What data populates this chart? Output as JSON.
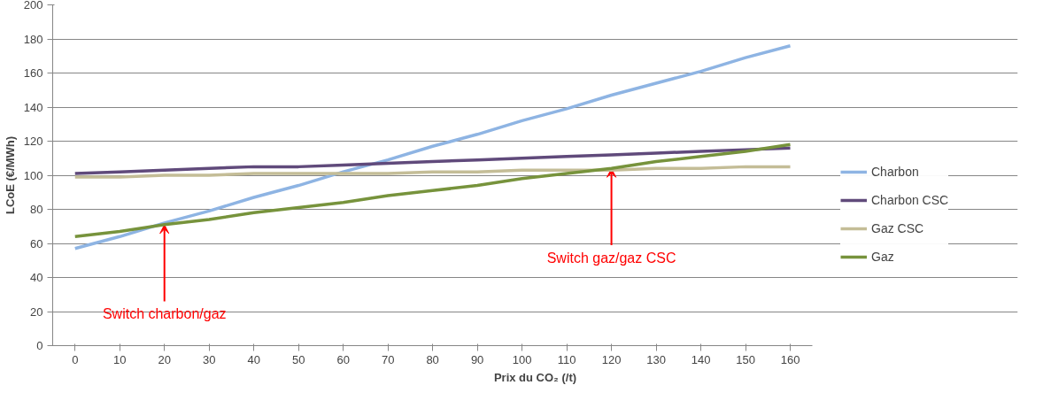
{
  "chart_data": {
    "type": "line",
    "xlabel": "Prix du CO₂ (/t)",
    "ylabel": "LCoE (€/MWh)",
    "categories": [
      "0",
      "10",
      "20",
      "30",
      "40",
      "50",
      "60",
      "70",
      "80",
      "90",
      "100",
      "110",
      "120",
      "130",
      "140",
      "150",
      "160"
    ],
    "series": [
      {
        "name": "Charbon",
        "color": "#8eb4e3",
        "values": [
          57,
          64,
          72,
          79,
          87,
          94,
          102,
          109,
          117,
          124,
          132,
          139,
          147,
          154,
          161,
          169,
          176
        ]
      },
      {
        "name": "Charbon CSC",
        "color": "#604a7b",
        "values": [
          101,
          102,
          103,
          104,
          105,
          105,
          106,
          107,
          108,
          109,
          110,
          111,
          112,
          113,
          114,
          115,
          116
        ]
      },
      {
        "name": "Gaz CSC",
        "color": "#c4bd97",
        "values": [
          99,
          99,
          100,
          100,
          101,
          101,
          101,
          101,
          102,
          102,
          103,
          103,
          103,
          104,
          104,
          105,
          105
        ]
      },
      {
        "name": "Gaz",
        "color": "#77933c",
        "values": [
          64,
          67,
          71,
          74,
          78,
          81,
          84,
          88,
          91,
          94,
          98,
          101,
          104,
          108,
          111,
          114,
          118
        ]
      }
    ],
    "ylim": [
      0,
      200
    ],
    "yticks": [
      0,
      20,
      40,
      60,
      80,
      100,
      120,
      140,
      160,
      180,
      200
    ],
    "grid": "y",
    "legend": "right",
    "marker": "none",
    "line_style": "solid",
    "annotations": [
      {
        "text": "Switch charbon/gaz",
        "x": "20",
        "y": 71
      },
      {
        "text": "Switch gaz/gaz CSC",
        "x": "120",
        "y": 104
      }
    ]
  }
}
